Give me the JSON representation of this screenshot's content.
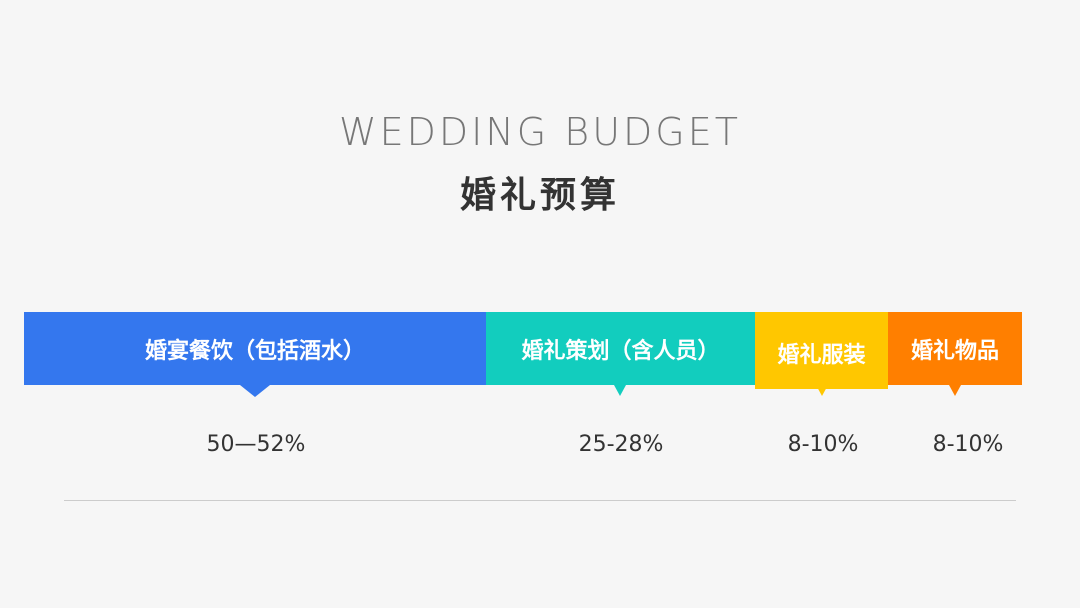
{
  "title_en": "WEDDING BUDGET",
  "title_cn": "婚礼预算",
  "chart_data": {
    "type": "bar",
    "stacked": true,
    "orientation": "horizontal",
    "categories": [
      "婚宴餐饮（包括酒水）",
      "婚礼策划（含人员）",
      "婚礼服装",
      "婚礼物品"
    ],
    "value_labels": [
      "50—52%",
      "25-28%",
      "8-10%",
      "8-10%"
    ],
    "ranges": [
      [
        50,
        52
      ],
      [
        25,
        28
      ],
      [
        8,
        10
      ],
      [
        8,
        10
      ]
    ],
    "unit": "%",
    "colors": [
      "#3477EE",
      "#12CDBE",
      "#FFC700",
      "#FF7F00"
    ],
    "grid": false
  }
}
